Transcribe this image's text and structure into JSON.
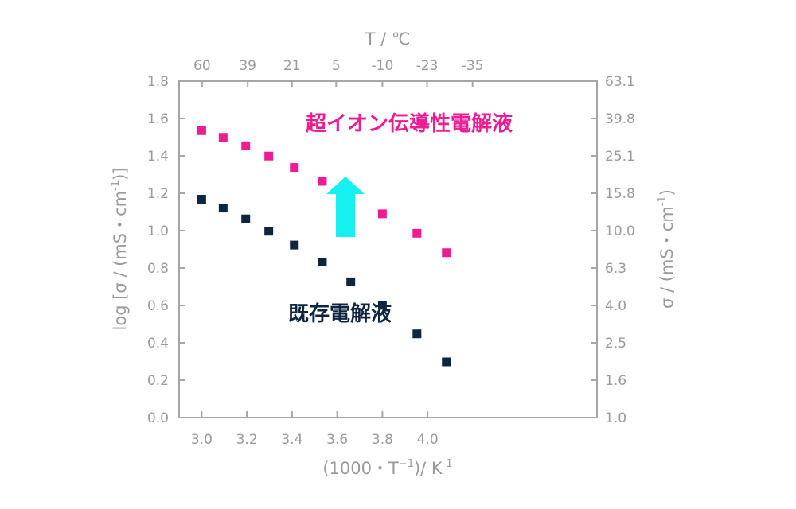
{
  "chart_data": {
    "type": "scatter",
    "xlabel_main": "(1000・T",
    "xlabel_sup": "−1",
    "xlabel_unit": ")/ K",
    "xlabel_unit_sup": "-1",
    "top_axis_title": "T / ℃",
    "ylabel_left_main": "log [σ / (mS・cm",
    "ylabel_left_sup": "-1",
    "ylabel_left_end": ")]",
    "ylabel_right_main": "σ / (mS・cm",
    "ylabel_right_sup": "-1",
    "ylabel_right_end": ")",
    "xlim": [
      2.9,
      4.75
    ],
    "ylim": [
      0.0,
      1.8
    ],
    "x_ticks": [
      "3.0",
      "3.2",
      "3.4",
      "3.6",
      "3.8",
      "4.0"
    ],
    "y_ticks": [
      "0.0",
      "0.2",
      "0.4",
      "0.6",
      "0.8",
      "1.0",
      "1.2",
      "1.4",
      "1.6",
      "1.8"
    ],
    "top_ticks": [
      "60",
      "39",
      "21",
      "5",
      "-10",
      "-23",
      "-35"
    ],
    "right_ticks": [
      "1.0",
      "1.6",
      "2.5",
      "4.0",
      "6.3",
      "10.0",
      "15.8",
      "25.1",
      "39.8",
      "63.1"
    ],
    "series": [
      {
        "name": "超イオン伝導性電解液",
        "color": "#ee1c94",
        "x": [
          3.0,
          3.095,
          3.195,
          3.297,
          3.41,
          3.534,
          3.66,
          3.8,
          3.953,
          4.083
        ],
        "y": [
          1.535,
          1.499,
          1.454,
          1.399,
          1.338,
          1.264,
          1.18,
          1.09,
          0.986,
          0.882
        ]
      },
      {
        "name": "既存電解液",
        "color": "#0e2540",
        "x": [
          3.0,
          3.095,
          3.195,
          3.297,
          3.41,
          3.534,
          3.66,
          3.8,
          3.953,
          4.083
        ],
        "y": [
          1.168,
          1.121,
          1.063,
          0.997,
          0.923,
          0.832,
          0.726,
          0.601,
          0.448,
          0.298
        ]
      }
    ],
    "arrow_color": "#15f0f0"
  }
}
